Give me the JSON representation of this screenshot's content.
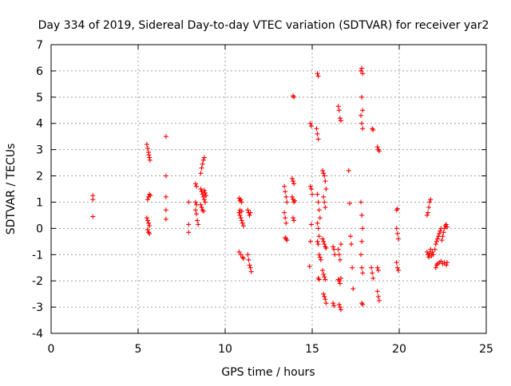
{
  "chart_data": {
    "type": "scatter",
    "title": "Day 334 of 2019, Sidereal Day-to-day VTEC variation (SDTVAR) for receiver yar2",
    "xlabel": "GPS time / hours",
    "ylabel": "SDTVAR / TECUs",
    "xlim": [
      0,
      25
    ],
    "ylim": [
      -4,
      7
    ],
    "xticks": [
      0,
      5,
      10,
      15,
      20,
      25
    ],
    "yticks": [
      -4,
      -3,
      -2,
      -1,
      0,
      1,
      2,
      3,
      4,
      5,
      6,
      7
    ],
    "xtick_labels": [
      "0",
      "5",
      "10",
      "15",
      "20",
      "25"
    ],
    "ytick_labels": [
      "-4",
      "-3",
      "-2",
      "-1",
      "0",
      "1",
      "2",
      "3",
      "4",
      "5",
      "6",
      "7"
    ],
    "grid": true,
    "marker": "plus",
    "color": "#ff0000",
    "series": [
      {
        "name": "yar2",
        "points": [
          [
            2.4,
            1.25
          ],
          [
            2.4,
            1.1
          ],
          [
            2.4,
            0.45
          ],
          [
            5.5,
            3.2
          ],
          [
            5.55,
            3.05
          ],
          [
            5.6,
            2.9
          ],
          [
            5.62,
            2.8
          ],
          [
            5.65,
            2.7
          ],
          [
            5.68,
            2.6
          ],
          [
            5.55,
            1.1
          ],
          [
            5.6,
            1.2
          ],
          [
            5.65,
            1.3
          ],
          [
            5.7,
            1.25
          ],
          [
            5.5,
            0.4
          ],
          [
            5.55,
            0.3
          ],
          [
            5.6,
            0.2
          ],
          [
            5.65,
            0.1
          ],
          [
            5.55,
            -0.05
          ],
          [
            5.6,
            -0.15
          ],
          [
            5.65,
            -0.2
          ],
          [
            6.6,
            3.5
          ],
          [
            6.6,
            2.0
          ],
          [
            6.6,
            1.2
          ],
          [
            6.6,
            0.7
          ],
          [
            6.6,
            0.35
          ],
          [
            7.9,
            1.0
          ],
          [
            7.9,
            0.15
          ],
          [
            7.9,
            -0.15
          ],
          [
            8.3,
            1.7
          ],
          [
            8.35,
            1.6
          ],
          [
            8.3,
            1.0
          ],
          [
            8.35,
            0.9
          ],
          [
            8.3,
            0.7
          ],
          [
            8.35,
            0.55
          ],
          [
            8.4,
            0.3
          ],
          [
            8.45,
            0.15
          ],
          [
            8.6,
            2.1
          ],
          [
            8.65,
            2.3
          ],
          [
            8.7,
            2.45
          ],
          [
            8.75,
            2.6
          ],
          [
            8.8,
            2.7
          ],
          [
            8.6,
            1.5
          ],
          [
            8.65,
            1.4
          ],
          [
            8.7,
            1.3
          ],
          [
            8.75,
            1.2
          ],
          [
            8.8,
            1.1
          ],
          [
            8.85,
            1.0
          ],
          [
            8.6,
            0.9
          ],
          [
            8.65,
            0.8
          ],
          [
            8.7,
            0.7
          ],
          [
            8.75,
            0.65
          ],
          [
            8.8,
            1.45
          ],
          [
            8.85,
            1.35
          ],
          [
            8.9,
            1.25
          ],
          [
            10.8,
            1.15
          ],
          [
            10.85,
            1.05
          ],
          [
            10.9,
            1.1
          ],
          [
            10.95,
            1.0
          ],
          [
            10.8,
            0.6
          ],
          [
            10.85,
            0.5
          ],
          [
            10.9,
            0.4
          ],
          [
            10.95,
            0.3
          ],
          [
            11.0,
            0.2
          ],
          [
            11.05,
            0.1
          ],
          [
            10.85,
            0.7
          ],
          [
            10.95,
            0.65
          ],
          [
            10.8,
            -0.9
          ],
          [
            10.9,
            -1.0
          ],
          [
            11.0,
            -1.1
          ],
          [
            11.05,
            -1.15
          ],
          [
            11.3,
            0.7
          ],
          [
            11.35,
            0.6
          ],
          [
            11.4,
            0.5
          ],
          [
            11.45,
            0.6
          ],
          [
            11.3,
            -1.0
          ],
          [
            11.35,
            -1.2
          ],
          [
            11.4,
            -1.4
          ],
          [
            11.45,
            -1.5
          ],
          [
            11.5,
            -1.65
          ],
          [
            13.4,
            1.6
          ],
          [
            13.45,
            1.4
          ],
          [
            13.5,
            1.2
          ],
          [
            13.55,
            1.0
          ],
          [
            13.4,
            0.6
          ],
          [
            13.45,
            0.4
          ],
          [
            13.5,
            0.2
          ],
          [
            13.45,
            -0.35
          ],
          [
            13.5,
            -0.4
          ],
          [
            13.55,
            -0.45
          ],
          [
            13.9,
            5.05
          ],
          [
            13.95,
            5.0
          ],
          [
            13.85,
            1.9
          ],
          [
            13.9,
            1.8
          ],
          [
            13.95,
            1.7
          ],
          [
            13.85,
            1.2
          ],
          [
            13.9,
            1.1
          ],
          [
            13.95,
            1.0
          ],
          [
            14.0,
            1.05
          ],
          [
            13.9,
            0.4
          ],
          [
            13.95,
            0.3
          ],
          [
            14.9,
            4.0
          ],
          [
            14.95,
            3.9
          ],
          [
            14.9,
            1.6
          ],
          [
            14.95,
            1.5
          ],
          [
            15.0,
            1.3
          ],
          [
            14.95,
            0.15
          ],
          [
            14.9,
            -0.5
          ],
          [
            14.85,
            -1.45
          ],
          [
            15.3,
            5.9
          ],
          [
            15.35,
            5.8
          ],
          [
            15.25,
            3.8
          ],
          [
            15.3,
            3.6
          ],
          [
            15.35,
            3.4
          ],
          [
            15.3,
            1.3
          ],
          [
            15.35,
            1.0
          ],
          [
            15.4,
            0.7
          ],
          [
            15.45,
            0.4
          ],
          [
            15.3,
            0.2
          ],
          [
            15.35,
            0.0
          ],
          [
            15.4,
            -0.3
          ],
          [
            15.3,
            -0.5
          ],
          [
            15.35,
            -0.6
          ],
          [
            15.4,
            -1.0
          ],
          [
            15.45,
            -1.1
          ],
          [
            15.5,
            -1.2
          ],
          [
            15.35,
            -1.9
          ],
          [
            15.4,
            -1.95
          ],
          [
            15.6,
            2.2
          ],
          [
            15.65,
            2.1
          ],
          [
            15.7,
            2.0
          ],
          [
            15.75,
            1.8
          ],
          [
            15.8,
            1.5
          ],
          [
            15.65,
            1.2
          ],
          [
            15.7,
            1.0
          ],
          [
            15.75,
            0.8
          ],
          [
            15.6,
            -0.4
          ],
          [
            15.65,
            -0.5
          ],
          [
            15.7,
            -0.6
          ],
          [
            15.75,
            -0.7
          ],
          [
            15.8,
            -0.75
          ],
          [
            15.6,
            -1.6
          ],
          [
            15.65,
            -1.75
          ],
          [
            15.7,
            -1.85
          ],
          [
            15.75,
            -1.95
          ],
          [
            15.65,
            -2.5
          ],
          [
            15.7,
            -2.6
          ],
          [
            15.75,
            -2.7
          ],
          [
            15.8,
            -2.85
          ],
          [
            16.2,
            -0.7
          ],
          [
            16.25,
            -0.8
          ],
          [
            16.3,
            -1.0
          ],
          [
            16.2,
            -2.85
          ],
          [
            16.25,
            -2.95
          ],
          [
            16.5,
            4.65
          ],
          [
            16.55,
            4.5
          ],
          [
            16.6,
            4.2
          ],
          [
            16.65,
            4.1
          ],
          [
            16.5,
            -0.8
          ],
          [
            16.55,
            -1.0
          ],
          [
            16.6,
            -1.2
          ],
          [
            16.65,
            -0.6
          ],
          [
            16.5,
            -1.95
          ],
          [
            16.55,
            -2.0
          ],
          [
            16.6,
            -2.1
          ],
          [
            16.65,
            -1.9
          ],
          [
            16.55,
            -2.9
          ],
          [
            16.6,
            -3.0
          ],
          [
            16.65,
            -3.1
          ],
          [
            17.1,
            2.2
          ],
          [
            17.15,
            0.95
          ],
          [
            17.2,
            -0.3
          ],
          [
            17.25,
            -0.6
          ],
          [
            17.3,
            -1.5
          ],
          [
            17.35,
            -2.3
          ],
          [
            17.8,
            6.0
          ],
          [
            17.85,
            6.1
          ],
          [
            17.9,
            5.9
          ],
          [
            17.85,
            5.0
          ],
          [
            17.9,
            4.5
          ],
          [
            17.8,
            4.3
          ],
          [
            17.85,
            4.0
          ],
          [
            17.9,
            3.8
          ],
          [
            17.8,
            1.0
          ],
          [
            17.85,
            0.5
          ],
          [
            17.9,
            0.0
          ],
          [
            17.85,
            -0.5
          ],
          [
            17.8,
            -1.0
          ],
          [
            17.85,
            -1.5
          ],
          [
            17.9,
            -1.7
          ],
          [
            17.85,
            -2.85
          ],
          [
            17.9,
            -2.9
          ],
          [
            18.45,
            3.8
          ],
          [
            18.5,
            3.75
          ],
          [
            18.4,
            -1.5
          ],
          [
            18.45,
            -1.7
          ],
          [
            18.5,
            -1.9
          ],
          [
            18.75,
            3.1
          ],
          [
            18.8,
            3.0
          ],
          [
            18.85,
            2.95
          ],
          [
            18.75,
            -1.5
          ],
          [
            18.8,
            -1.6
          ],
          [
            18.75,
            -2.4
          ],
          [
            18.8,
            -2.6
          ],
          [
            18.85,
            -2.75
          ],
          [
            19.85,
            0.7
          ],
          [
            19.9,
            0.75
          ],
          [
            19.85,
            0.0
          ],
          [
            19.9,
            -0.2
          ],
          [
            19.95,
            -0.4
          ],
          [
            19.85,
            -1.3
          ],
          [
            19.9,
            -1.5
          ],
          [
            19.95,
            -1.6
          ],
          [
            21.6,
            0.5
          ],
          [
            21.65,
            0.6
          ],
          [
            21.7,
            0.8
          ],
          [
            21.75,
            1.0
          ],
          [
            21.8,
            1.1
          ],
          [
            21.6,
            -0.9
          ],
          [
            21.65,
            -1.0
          ],
          [
            21.7,
            -1.1
          ],
          [
            21.75,
            -0.95
          ],
          [
            21.8,
            -0.8
          ],
          [
            21.85,
            -1.05
          ],
          [
            21.9,
            -0.9
          ],
          [
            21.95,
            -1.0
          ],
          [
            22.05,
            -0.8
          ],
          [
            22.1,
            -0.6
          ],
          [
            22.15,
            -0.5
          ],
          [
            22.2,
            -0.4
          ],
          [
            22.25,
            -0.3
          ],
          [
            22.3,
            -0.2
          ],
          [
            22.35,
            -0.1
          ],
          [
            22.4,
            0.0
          ],
          [
            22.45,
            -0.45
          ],
          [
            22.5,
            -0.3
          ],
          [
            22.55,
            -0.15
          ],
          [
            22.6,
            0.0
          ],
          [
            22.65,
            0.1
          ],
          [
            22.7,
            0.15
          ],
          [
            22.75,
            0.05
          ],
          [
            22.1,
            -1.5
          ],
          [
            22.15,
            -1.4
          ],
          [
            22.2,
            -1.35
          ],
          [
            22.3,
            -1.3
          ],
          [
            22.4,
            -1.25
          ],
          [
            22.5,
            -1.35
          ],
          [
            22.6,
            -1.3
          ],
          [
            22.7,
            -1.4
          ],
          [
            22.75,
            -1.3
          ]
        ]
      }
    ]
  }
}
